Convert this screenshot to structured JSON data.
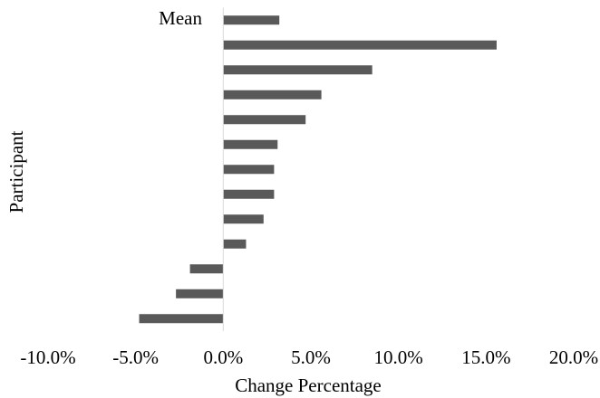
{
  "chart_data": {
    "type": "hbar",
    "x_label": "Change Percentage",
    "y_label": "Participant",
    "categories": [
      "Mean",
      null,
      null,
      null,
      null,
      null,
      null,
      null,
      null,
      null,
      null,
      null,
      null
    ],
    "values": [
      3.2,
      15.6,
      8.5,
      5.6,
      4.7,
      3.1,
      2.9,
      2.9,
      2.3,
      1.3,
      -1.9,
      -2.7,
      -4.8
    ],
    "color": "#595959",
    "xlim": [
      -10,
      20
    ],
    "xticks": [
      {
        "value": -10,
        "label": "-10.0%"
      },
      {
        "value": -5,
        "label": "-5.0%"
      },
      {
        "value": 0,
        "label": "0.0%"
      },
      {
        "value": 5,
        "label": "5.0%"
      },
      {
        "value": 10,
        "label": "10.0%"
      },
      {
        "value": 15,
        "label": "15.0%"
      },
      {
        "value": 20,
        "label": "20.0%"
      }
    ],
    "grid": false
  }
}
